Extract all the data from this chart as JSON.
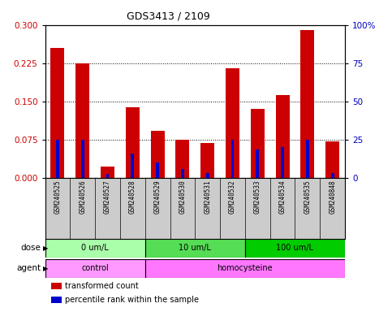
{
  "title": "GDS3413 / 2109",
  "samples": [
    "GSM240525",
    "GSM240526",
    "GSM240527",
    "GSM240528",
    "GSM240529",
    "GSM240530",
    "GSM240531",
    "GSM240532",
    "GSM240533",
    "GSM240534",
    "GSM240535",
    "GSM240848"
  ],
  "transformed_count": [
    0.255,
    0.225,
    0.022,
    0.138,
    0.092,
    0.075,
    0.068,
    0.215,
    0.135,
    0.163,
    0.29,
    0.072
  ],
  "percentile_rank_scaled": [
    0.075,
    0.075,
    0.008,
    0.048,
    0.03,
    0.018,
    0.01,
    0.075,
    0.055,
    0.06,
    0.075,
    0.01
  ],
  "dose_groups": [
    {
      "label": "0 um/L",
      "start": 0,
      "end": 3,
      "color": "#AAFFAA"
    },
    {
      "label": "10 um/L",
      "start": 4,
      "end": 7,
      "color": "#55DD55"
    },
    {
      "label": "100 um/L",
      "start": 8,
      "end": 11,
      "color": "#00CC00"
    }
  ],
  "agent_groups": [
    {
      "label": "control",
      "start": 0,
      "end": 3,
      "color": "#FF99FF"
    },
    {
      "label": "homocysteine",
      "start": 4,
      "end": 11,
      "color": "#FF77FF"
    }
  ],
  "ylim_left": [
    0,
    0.3
  ],
  "ylim_right": [
    0,
    100
  ],
  "yticks_left": [
    0,
    0.075,
    0.15,
    0.225,
    0.3
  ],
  "yticks_right": [
    0,
    25,
    50,
    75,
    100
  ],
  "bar_color_red": "#CC0000",
  "bar_color_blue": "#0000CC",
  "left_axis_color": "#CC0000",
  "right_axis_color": "#0000BB",
  "xlab_bg": "#CCCCCC",
  "legend_items": [
    {
      "color": "#CC0000",
      "label": "transformed count"
    },
    {
      "color": "#0000CC",
      "label": "percentile rank within the sample"
    }
  ]
}
